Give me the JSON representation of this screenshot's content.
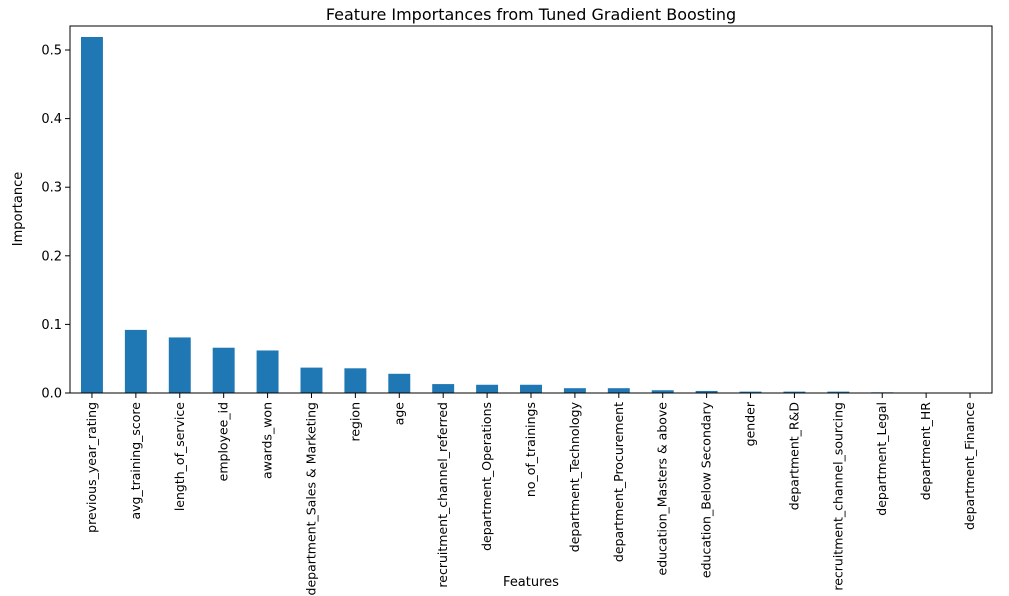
{
  "chart_data": {
    "type": "bar",
    "title": "Feature Importances from Tuned Gradient Boosting",
    "xlabel": "Features",
    "ylabel": "Importance",
    "ylim": [
      0,
      0.535
    ],
    "yticks": [
      "0.0",
      "0.1",
      "0.2",
      "0.3",
      "0.4",
      "0.5"
    ],
    "grid": false,
    "bar_color": "#1f77b4",
    "categories": [
      "previous_year_rating",
      "avg_training_score",
      "length_of_service",
      "employee_id",
      "awards_won",
      "department_Sales & Marketing",
      "region",
      "age",
      "recruitment_channel_referred",
      "department_Operations",
      "no_of_trainings",
      "department_Technology",
      "department_Procurement",
      "education_Masters & above",
      "education_Below Secondary",
      "gender",
      "department_R&D",
      "recruitment_channel_sourcing",
      "department_Legal",
      "department_HR",
      "department_Finance"
    ],
    "values": [
      0.519,
      0.092,
      0.081,
      0.066,
      0.062,
      0.037,
      0.036,
      0.028,
      0.013,
      0.012,
      0.012,
      0.007,
      0.007,
      0.004,
      0.003,
      0.002,
      0.002,
      0.002,
      0.001,
      0.0004,
      0.0002
    ]
  }
}
